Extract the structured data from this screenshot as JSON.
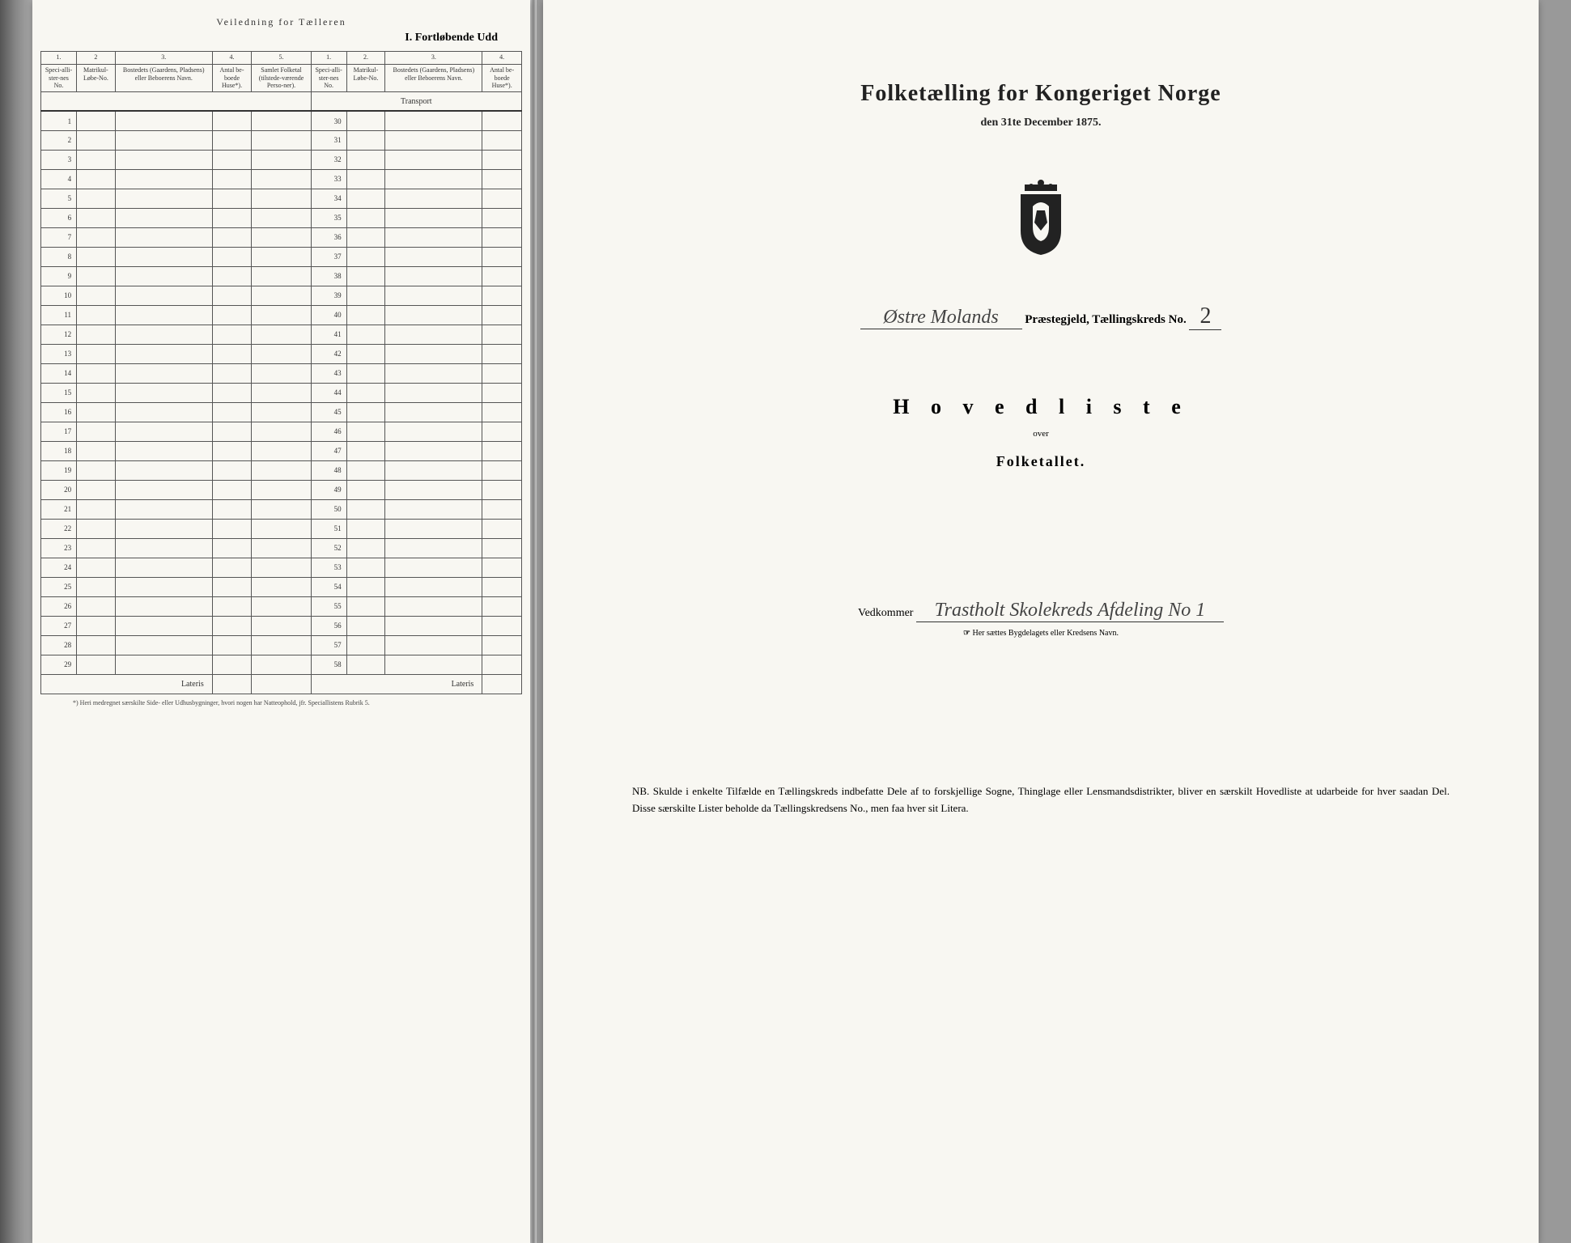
{
  "leftPage": {
    "topFaded": "Veiledning for Tælleren",
    "sectionTitle": "I.  Fortløbende  Udd",
    "colNumbersA": [
      "1.",
      "2",
      "3.",
      "4.",
      "5."
    ],
    "colNumbersB": [
      "1.",
      "2.",
      "3.",
      "4."
    ],
    "headersA": {
      "c1": "Speci-alli-ster-nes No.",
      "c2": "Matrikul-Løbe-No.",
      "c3": "Bostedets (Gaardens, Pladsens) eller Beboerens Navn.",
      "c4": "Antal be-boede Huse*).",
      "c5": "Samlet Folketal (tilstede-værende Perso-ner)."
    },
    "headersB": {
      "c1": "Speci-alli-ster-nes No.",
      "c2": "Matrikul-Løbe-No.",
      "c3": "Bostedets (Gaardens, Pladsens) eller Beboerens Navn.",
      "c4": "Antal be-boede Huse*)."
    },
    "transport": "Transport",
    "rowsLeft": [
      1,
      2,
      3,
      4,
      5,
      6,
      7,
      8,
      9,
      10,
      11,
      12,
      13,
      14,
      15,
      16,
      17,
      18,
      19,
      20,
      21,
      22,
      23,
      24,
      25,
      26,
      27,
      28,
      29
    ],
    "rowsRight": [
      30,
      31,
      32,
      33,
      34,
      35,
      36,
      37,
      38,
      39,
      40,
      41,
      42,
      43,
      44,
      45,
      46,
      47,
      48,
      49,
      50,
      51,
      52,
      53,
      54,
      55,
      56,
      57,
      58
    ],
    "lateris": "Lateris",
    "footnote": "*) Heri medregnet særskilte Side- eller Udhusbygninger, hvori nogen har Natteophold, jfr. Speciallistens Rubrik 5."
  },
  "rightPage": {
    "title": "Folketælling for Kongeriget Norge",
    "subtitle": "den 31te December 1875.",
    "parishHandwritten": "Østre Molands",
    "parishLabel": "Præstegjeld, Tællingskreds No.",
    "kredsNo": "2",
    "hovedliste": "H o v e d l i s t e",
    "over": "over",
    "folketallet": "Folketallet.",
    "vedkommerLabel": "Vedkommer",
    "vedkommerHandwritten": "Trastholt Skolekreds Afdeling No 1",
    "smallNotePointer": "☞",
    "smallNote": "Her sættes Bygdelagets eller Kredsens Navn.",
    "nb": "NB.   Skulde i enkelte Tilfælde en Tællingskreds indbefatte Dele af to forskjellige Sogne, Thinglage eller Lensmandsdistrikter, bliver en særskilt Hovedliste at udarbeide for hver saadan Del.  Disse særskilte Lister beholde da Tællingskredsens No., men faa hver sit Litera."
  }
}
